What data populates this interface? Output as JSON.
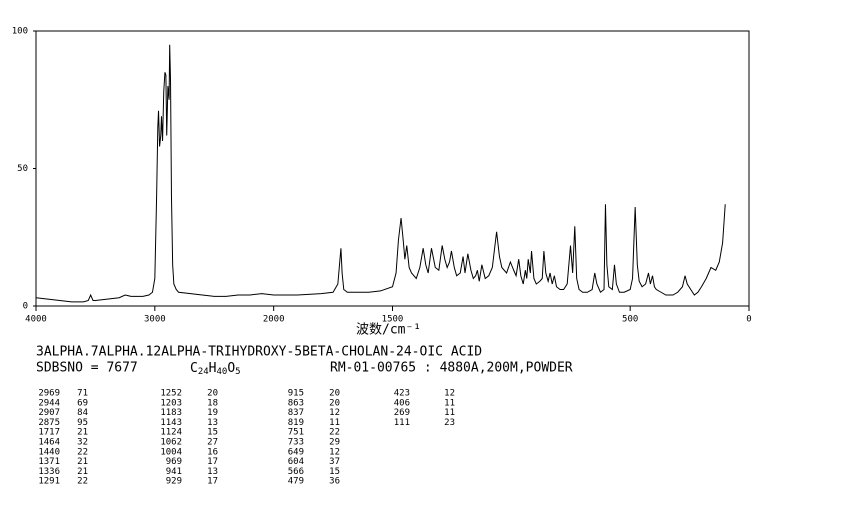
{
  "chart_data": {
    "type": "line",
    "x_label": "波数/cm⁻¹",
    "xlim": [
      4000,
      0
    ],
    "x_break": 2000,
    "xticks": [
      4000,
      3000,
      2000,
      1500,
      500,
      0
    ],
    "ylim": [
      0,
      100
    ],
    "yticks": [
      0,
      50,
      100
    ],
    "color": "#000000",
    "x": [
      4000,
      3900,
      3800,
      3700,
      3600,
      3560,
      3540,
      3520,
      3500,
      3400,
      3300,
      3250,
      3200,
      3100,
      3050,
      3020,
      3000,
      2985,
      2975,
      2969,
      2960,
      2950,
      2944,
      2935,
      2925,
      2915,
      2907,
      2900,
      2890,
      2880,
      2875,
      2868,
      2860,
      2850,
      2840,
      2820,
      2800,
      2700,
      2600,
      2500,
      2400,
      2300,
      2200,
      2100,
      2000,
      1900,
      1800,
      1750,
      1730,
      1722,
      1717,
      1712,
      1705,
      1690,
      1650,
      1600,
      1550,
      1500,
      1485,
      1475,
      1464,
      1455,
      1448,
      1440,
      1430,
      1420,
      1400,
      1385,
      1371,
      1360,
      1350,
      1336,
      1320,
      1305,
      1291,
      1280,
      1270,
      1260,
      1252,
      1240,
      1230,
      1215,
      1203,
      1195,
      1183,
      1170,
      1160,
      1150,
      1143,
      1135,
      1124,
      1110,
      1095,
      1080,
      1062,
      1050,
      1040,
      1020,
      1004,
      990,
      980,
      969,
      960,
      950,
      941,
      935,
      929,
      920,
      915,
      905,
      895,
      880,
      870,
      863,
      855,
      845,
      837,
      828,
      819,
      810,
      795,
      780,
      765,
      751,
      742,
      733,
      725,
      715,
      700,
      680,
      660,
      649,
      640,
      625,
      610,
      604,
      598,
      590,
      575,
      566,
      558,
      545,
      525,
      500,
      490,
      479,
      470,
      462,
      450,
      435,
      423,
      415,
      406,
      398,
      390,
      370,
      350,
      320,
      300,
      280,
      269,
      260,
      245,
      230,
      215,
      200,
      180,
      160,
      140,
      125,
      111,
      100
    ],
    "values": [
      3,
      2.5,
      2,
      1.5,
      1.5,
      2,
      4,
      2,
      2,
      2.5,
      3,
      4,
      3.5,
      3.5,
      4,
      5,
      10,
      40,
      65,
      71,
      58,
      62,
      69,
      60,
      78,
      85,
      84,
      62,
      80,
      75,
      95,
      82,
      40,
      15,
      8,
      6,
      5,
      4.5,
      4,
      3.5,
      3.5,
      4,
      4,
      4.5,
      4,
      4,
      4.5,
      5,
      8,
      16,
      21,
      12,
      6,
      5,
      5,
      5,
      5.5,
      7,
      12,
      24,
      32,
      24,
      17,
      22,
      14,
      12,
      10,
      14,
      21,
      15,
      12,
      21,
      14,
      13,
      22,
      17,
      14,
      16,
      20,
      14,
      11,
      12,
      18,
      12,
      19,
      13,
      10,
      11,
      13,
      9,
      15,
      10,
      11,
      14,
      27,
      18,
      14,
      12,
      16,
      13,
      11,
      17,
      11,
      8,
      13,
      10,
      17,
      12,
      20,
      10,
      8,
      9,
      10,
      20,
      12,
      9,
      12,
      8,
      11,
      7,
      6,
      6,
      8,
      22,
      12,
      29,
      10,
      6,
      5,
      5,
      6,
      12,
      8,
      5,
      6,
      37,
      15,
      7,
      6,
      15,
      8,
      5,
      5,
      6,
      10,
      36,
      15,
      9,
      7,
      8,
      12,
      8,
      11,
      7,
      6,
      5,
      4,
      4,
      5,
      7,
      11,
      8,
      6,
      4,
      5,
      7,
      10,
      14,
      13,
      16,
      23,
      37
    ]
  },
  "compound": "3ALPHA.7ALPHA.12ALPHA-TRIHYDROXY-5BETA-CHOLAN-24-OIC ACID",
  "sdbs_no": "SDBSNO = 7677",
  "formula": "C24H40O5",
  "sample": "RM-01-00765 : 4880A,200M,POWDER",
  "peak_table": [
    [
      "2969",
      "71"
    ],
    [
      "2944",
      "69"
    ],
    [
      "2907",
      "84"
    ],
    [
      "2875",
      "95"
    ],
    [
      "1717",
      "21"
    ],
    [
      "1464",
      "32"
    ],
    [
      "1440",
      "22"
    ],
    [
      "1371",
      "21"
    ],
    [
      "1336",
      "21"
    ],
    [
      "1291",
      "22"
    ],
    [
      "1252",
      "20"
    ],
    [
      "1203",
      "18"
    ],
    [
      "1183",
      "19"
    ],
    [
      "1143",
      "13"
    ],
    [
      "1124",
      "15"
    ],
    [
      "1062",
      "27"
    ],
    [
      "1004",
      "16"
    ],
    [
      "969",
      "17"
    ],
    [
      "941",
      "13"
    ],
    [
      "929",
      "17"
    ],
    [
      "915",
      "20"
    ],
    [
      "863",
      "20"
    ],
    [
      "837",
      "12"
    ],
    [
      "819",
      "11"
    ],
    [
      "751",
      "22"
    ],
    [
      "733",
      "29"
    ],
    [
      "649",
      "12"
    ],
    [
      "604",
      "37"
    ],
    [
      "566",
      "15"
    ],
    [
      "479",
      "36"
    ],
    [
      "423",
      "12"
    ],
    [
      "406",
      "11"
    ],
    [
      "269",
      "11"
    ],
    [
      "111",
      "23"
    ]
  ]
}
